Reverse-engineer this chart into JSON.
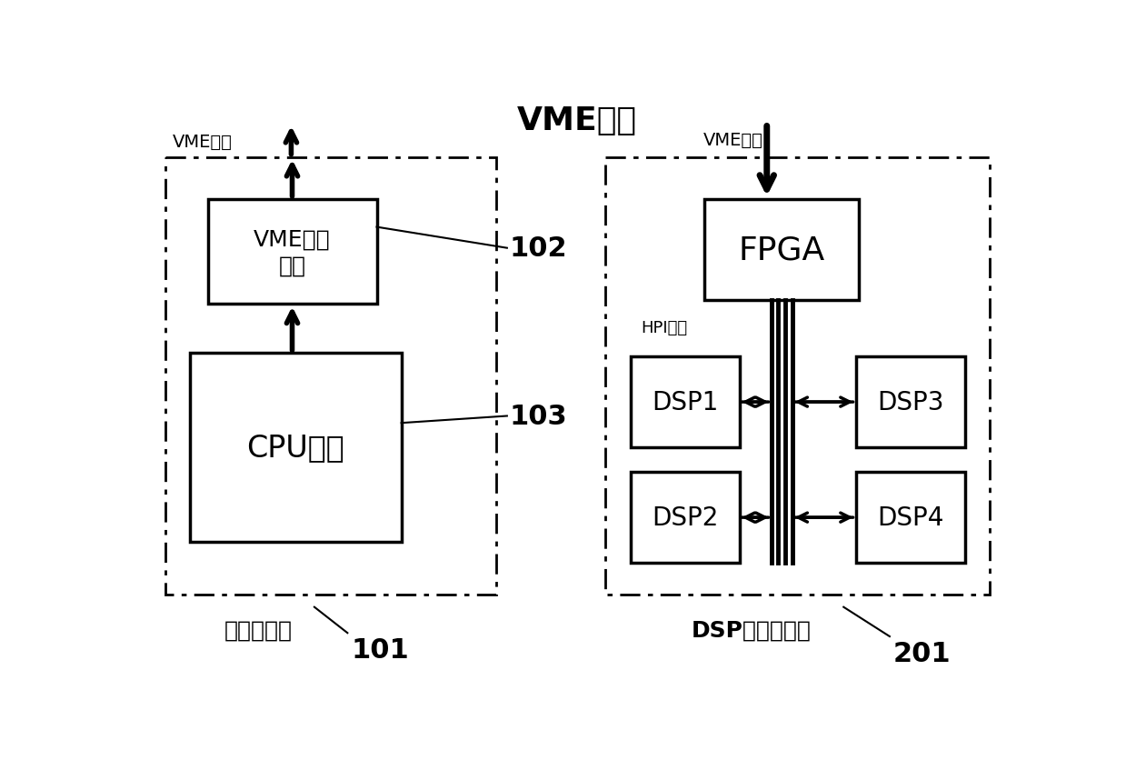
{
  "title": "VME总线",
  "bg_color": "#ffffff",
  "left_panel": {
    "label": "单板计算机",
    "label_id": "101",
    "vme_label": "VME总线",
    "vme_interface_line1": "VME接口",
    "vme_interface_line2": "电路",
    "cpu_text": "CPU主机",
    "label_102": "102",
    "label_103": "103"
  },
  "right_panel": {
    "label": "DSP信号处理板",
    "label_id": "201",
    "vme_label": "VME总线",
    "fpga_text": "FPGA",
    "hpi_label": "HPI总线",
    "dsp1_text": "DSP1",
    "dsp2_text": "DSP2",
    "dsp3_text": "DSP3",
    "dsp4_text": "DSP4"
  }
}
